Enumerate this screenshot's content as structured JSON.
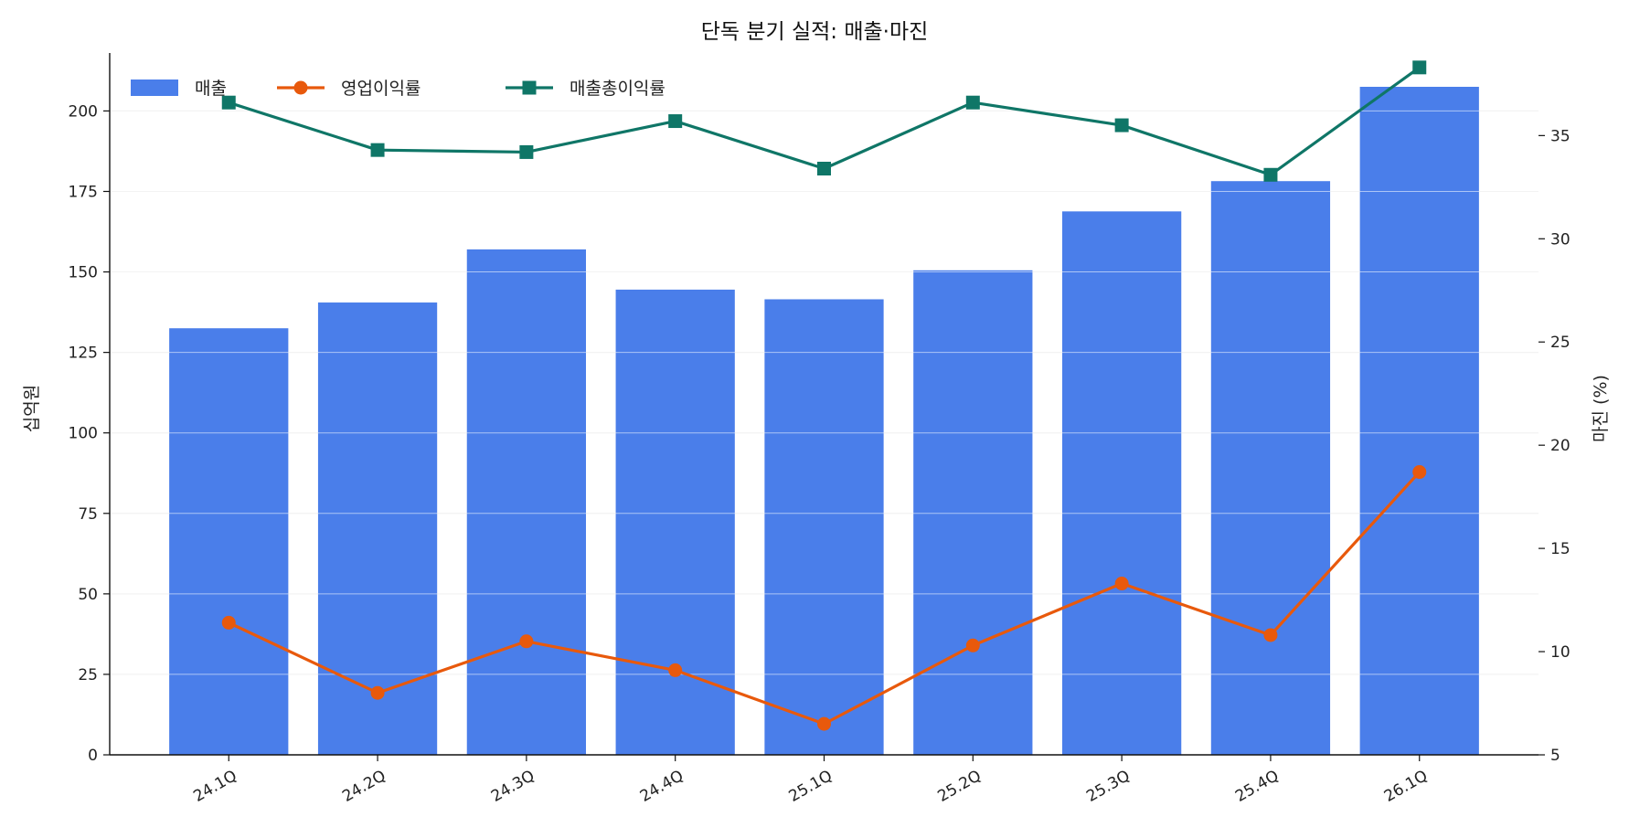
{
  "chart_data": {
    "type": "bar",
    "title": "단독 분기 실적: 매출·마진",
    "categories": [
      "24.1Q",
      "24.2Q",
      "24.3Q",
      "24.4Q",
      "25.1Q",
      "25.2Q",
      "25.3Q",
      "25.4Q",
      "26.1Q"
    ],
    "ylabel_left": "십억원",
    "ylabel_right": "마진 (%)",
    "ylim_left": [
      0,
      218
    ],
    "yticks_left": [
      0,
      25,
      50,
      75,
      100,
      125,
      150,
      175,
      200
    ],
    "ylim_right": [
      5,
      39
    ],
    "yticks_right": [
      5,
      10,
      15,
      20,
      25,
      30,
      35
    ],
    "grid": "horizontal",
    "legend_position": "top-left",
    "series": [
      {
        "name": "매출",
        "kind": "bar",
        "axis": "left",
        "color": "#4a7eea",
        "values": [
          132.5,
          140.5,
          157.0,
          144.5,
          141.5,
          150.5,
          168.8,
          178.2,
          207.5
        ]
      },
      {
        "name": "영업이익률",
        "kind": "line",
        "axis": "right",
        "marker": "circle",
        "color": "#e8590c",
        "values": [
          11.4,
          8.0,
          10.5,
          9.1,
          6.5,
          10.3,
          13.3,
          10.8,
          18.7
        ]
      },
      {
        "name": "매출총이익률",
        "kind": "line",
        "axis": "right",
        "marker": "square",
        "color": "#0f7667",
        "values": [
          36.6,
          34.3,
          34.2,
          35.7,
          33.4,
          36.6,
          35.5,
          33.1,
          38.3
        ]
      }
    ]
  }
}
